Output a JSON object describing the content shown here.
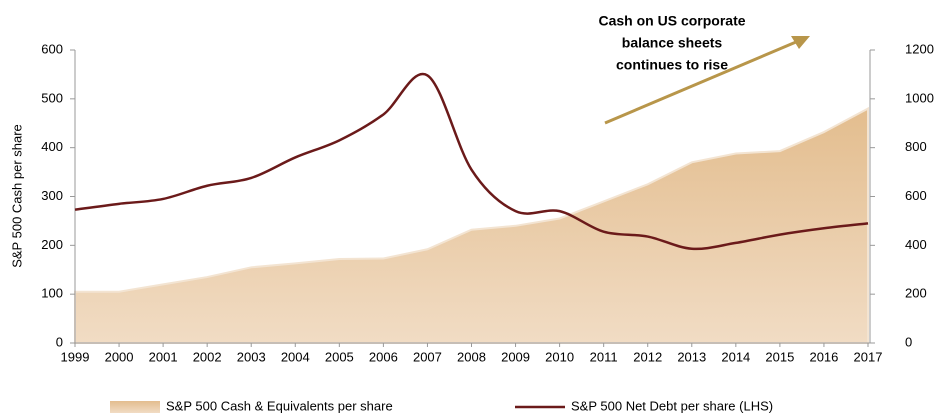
{
  "chart_data": {
    "type": "area_line",
    "annotation": [
      "Cash on US corporate",
      "balance sheets",
      "continues to rise"
    ],
    "ylabel": "S&P 500 Cash per share",
    "categories": [
      "1999",
      "2000",
      "2001",
      "2002",
      "2003",
      "2004",
      "2005",
      "2006",
      "2007",
      "2008",
      "2009",
      "2010",
      "2011",
      "2012",
      "2013",
      "2014",
      "2015",
      "2016",
      "2017"
    ],
    "series": [
      {
        "name": "S&P 500 Cash & Equivalents per share",
        "color": "#e6c7a0",
        "kind": "area",
        "axis": "y2",
        "values": [
          210,
          210,
          240,
          270,
          310,
          326,
          344,
          346,
          384,
          464,
          480,
          510,
          580,
          650,
          740,
          776,
          786,
          864,
          960
        ]
      },
      {
        "name": "S&P 500 Net Debt per share (LHS)",
        "color": "#6b1a1a",
        "kind": "line",
        "values": [
          273,
          285,
          295,
          322,
          338,
          380,
          415,
          468,
          548,
          355,
          270,
          270,
          228,
          218,
          193,
          205,
          222,
          235,
          245
        ]
      }
    ],
    "ylim": [
      0,
      600
    ],
    "yticks": [
      0,
      100,
      200,
      300,
      400,
      500,
      600
    ],
    "y2lim": [
      0,
      1200
    ],
    "y2ticks": [
      0,
      200,
      400,
      600,
      800,
      1000,
      1200
    ]
  }
}
